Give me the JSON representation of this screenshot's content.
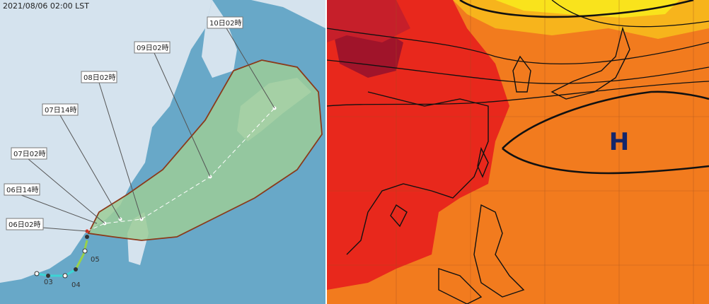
{
  "left_map": {
    "timestamp": "2021/08/06 02:00 LST",
    "forecast_labels": [
      "10日02時",
      "09日02時",
      "08日02時",
      "07日14時",
      "07日02時",
      "06日14時",
      "06日02時"
    ],
    "track_labels": [
      "05",
      "04",
      "03"
    ]
  },
  "right_map": {
    "high_label": "H"
  }
}
